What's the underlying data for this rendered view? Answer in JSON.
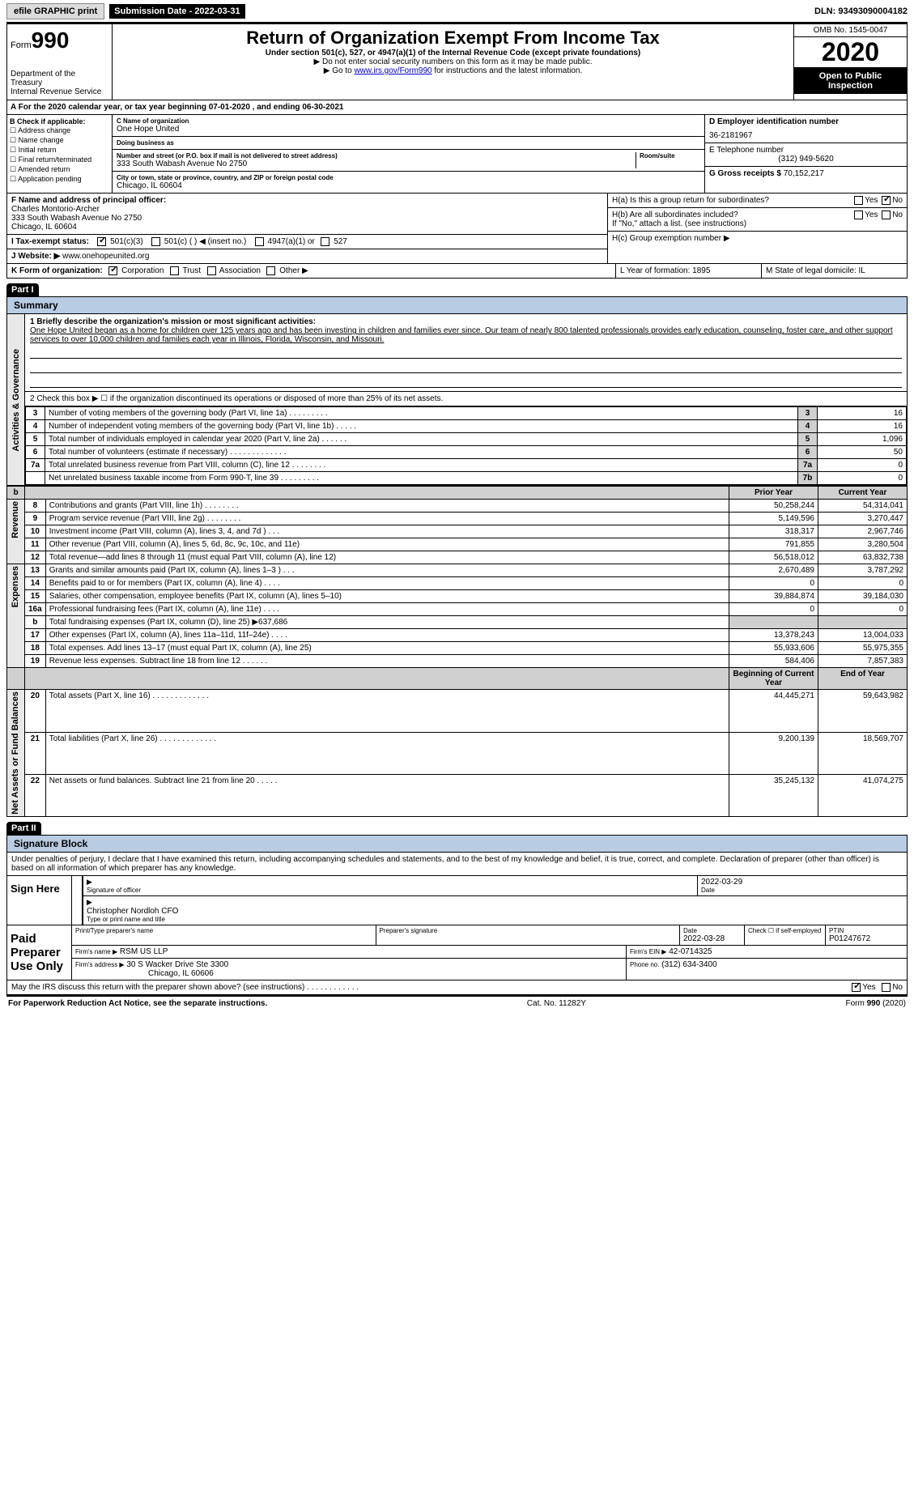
{
  "topbar": {
    "efile": "efile GRAPHIC print",
    "submission": "Submission Date - 2022-03-31",
    "dln": "DLN: 93493090004182"
  },
  "header": {
    "form": "Form",
    "num": "990",
    "dept": "Department of the Treasury\nInternal Revenue Service",
    "title": "Return of Organization Exempt From Income Tax",
    "sub": "Under section 501(c), 527, or 4947(a)(1) of the Internal Revenue Code (except private foundations)",
    "note1": "▶ Do not enter social security numbers on this form as it may be made public.",
    "note2_pre": "▶ Go to ",
    "note2_link": "www.irs.gov/Form990",
    "note2_post": " for instructions and the latest information.",
    "omb": "OMB No. 1545-0047",
    "year": "2020",
    "open": "Open to Public Inspection"
  },
  "rowA": "A For the 2020 calendar year, or tax year beginning 07-01-2020    , and ending 06-30-2021",
  "boxB": {
    "title": "B Check if applicable:",
    "items": [
      "Address change",
      "Name change",
      "Initial return",
      "Final return/terminated",
      "Amended return",
      "Application pending"
    ]
  },
  "boxC": {
    "lbl": "C Name of organization",
    "name": "One Hope United",
    "dba_lbl": "Doing business as",
    "addr_lbl": "Number and street (or P.O. box if mail is not delivered to street address)",
    "addr": "333 South Wabash Avenue No 2750",
    "room_lbl": "Room/suite",
    "city_lbl": "City or town, state or province, country, and ZIP or foreign postal code",
    "city": "Chicago, IL  60604"
  },
  "boxD": {
    "lbl": "D Employer identification number",
    "val": "36-2181967"
  },
  "boxE": {
    "lbl": "E Telephone number",
    "val": "(312) 949-5620"
  },
  "boxG": {
    "lbl": "G Gross receipts $",
    "val": "70,152,217"
  },
  "boxF": {
    "lbl": "F Name and address of principal officer:",
    "name": "Charles Montorio-Archer",
    "addr": "333 South Wabash Avenue No 2750",
    "city": "Chicago, IL  60604"
  },
  "boxH": {
    "a": "H(a)  Is this a group return for subordinates?",
    "b": "H(b)  Are all subordinates included?",
    "note": "If \"No,\" attach a list. (see instructions)",
    "c": "H(c)  Group exemption number ▶"
  },
  "yes": "Yes",
  "no": "No",
  "boxI": "I    Tax-exempt status:",
  "i_opts": [
    "501(c)(3)",
    "501(c) (  ) ◀ (insert no.)",
    "4947(a)(1) or",
    "527"
  ],
  "boxJ": {
    "lbl": "J   Website: ▶",
    "val": "www.onehopeunited.org"
  },
  "boxK": "K Form of organization:",
  "k_opts": [
    "Corporation",
    "Trust",
    "Association",
    "Other ▶"
  ],
  "boxL": "L Year of formation: 1895",
  "boxM": "M State of legal domicile: IL",
  "part1": {
    "hdr": "Part I",
    "title": "Summary"
  },
  "mission": {
    "lbl": "1  Briefly describe the organization's mission or most significant activities:",
    "txt": "One Hope United began as a home for children over 125 years ago and has been investing in children and families ever since. Our team of nearly 800 talented professionals provides early education, counseling, foster care, and other support services to over 10,000 children and families each year in Illinois, Florida, Wisconsin, and Missouri."
  },
  "line2": "2   Check this box ▶ ☐ if the organization discontinued its operations or disposed of more than 25% of its net assets.",
  "gov_rows": [
    {
      "n": "3",
      "t": "Number of voting members of the governing body (Part VI, line 1a)   .    .    .    .    .    .    .    .    .",
      "b": "3",
      "v": "16"
    },
    {
      "n": "4",
      "t": "Number of independent voting members of the governing body (Part VI, line 1b)    .    .    .    .    .",
      "b": "4",
      "v": "16"
    },
    {
      "n": "5",
      "t": "Total number of individuals employed in calendar year 2020 (Part V, line 2a)   .    .    .    .    .    .",
      "b": "5",
      "v": "1,096"
    },
    {
      "n": "6",
      "t": "Total number of volunteers (estimate if necessary)    .    .    .    .    .    .    .    .    .    .    .    .    .",
      "b": "6",
      "v": "50"
    },
    {
      "n": "7a",
      "t": "Total unrelated business revenue from Part VIII, column (C), line 12    .    .    .    .    .    .    .    .",
      "b": "7a",
      "v": "0"
    },
    {
      "n": "",
      "t": "Net unrelated business taxable income from Form 990-T, line 39    .    .    .    .    .    .    .    .    .",
      "b": "7b",
      "v": "0"
    }
  ],
  "yr_hdr": {
    "b": "b",
    "py": "Prior Year",
    "cy": "Current Year"
  },
  "rev_side": "Revenue",
  "rev_rows": [
    {
      "n": "8",
      "t": "Contributions and grants (Part VIII, line 1h)    .    .    .    .    .    .    .    .",
      "py": "50,258,244",
      "cy": "54,314,041"
    },
    {
      "n": "9",
      "t": "Program service revenue (Part VIII, line 2g)    .    .    .    .    .    .    .    .",
      "py": "5,149,596",
      "cy": "3,270,447"
    },
    {
      "n": "10",
      "t": "Investment income (Part VIII, column (A), lines 3, 4, and 7d )    .    .    .",
      "py": "318,317",
      "cy": "2,967,746"
    },
    {
      "n": "11",
      "t": "Other revenue (Part VIII, column (A), lines 5, 6d, 8c, 9c, 10c, and 11e)",
      "py": "791,855",
      "cy": "3,280,504"
    },
    {
      "n": "12",
      "t": "Total revenue—add lines 8 through 11 (must equal Part VIII, column (A), line 12)",
      "py": "56,518,012",
      "cy": "63,832,738"
    }
  ],
  "exp_side": "Expenses",
  "exp_rows": [
    {
      "n": "13",
      "t": "Grants and similar amounts paid (Part IX, column (A), lines 1–3 )    .    .    .",
      "py": "2,670,489",
      "cy": "3,787,292"
    },
    {
      "n": "14",
      "t": "Benefits paid to or for members (Part IX, column (A), line 4)    .    .    .    .",
      "py": "0",
      "cy": "0"
    },
    {
      "n": "15",
      "t": "Salaries, other compensation, employee benefits (Part IX, column (A), lines 5–10)",
      "py": "39,884,874",
      "cy": "39,184,030"
    },
    {
      "n": "16a",
      "t": "Professional fundraising fees (Part IX, column (A), line 11e)    .    .    .    .",
      "py": "0",
      "cy": "0"
    },
    {
      "n": "b",
      "t": "Total fundraising expenses (Part IX, column (D), line 25) ▶637,686",
      "py": "",
      "cy": ""
    },
    {
      "n": "17",
      "t": "Other expenses (Part IX, column (A), lines 11a–11d, 11f–24e)    .    .    .    .",
      "py": "13,378,243",
      "cy": "13,004,033"
    },
    {
      "n": "18",
      "t": "Total expenses. Add lines 13–17 (must equal Part IX, column (A), line 25)",
      "py": "55,933,606",
      "cy": "55,975,355"
    },
    {
      "n": "19",
      "t": "Revenue less expenses. Subtract line 18 from line 12    .    .    .    .    .    .",
      "py": "584,406",
      "cy": "7,857,383"
    }
  ],
  "na_side": "Net Assets or Fund Balances",
  "na_hdr": {
    "py": "Beginning of Current Year",
    "cy": "End of Year"
  },
  "na_rows": [
    {
      "n": "20",
      "t": "Total assets (Part X, line 16)    .    .    .    .    .    .    .    .    .    .    .    .    .",
      "py": "44,445,271",
      "cy": "59,643,982"
    },
    {
      "n": "21",
      "t": "Total liabilities (Part X, line 26)    .    .    .    .    .    .    .    .    .    .    .    .    .",
      "py": "9,200,139",
      "cy": "18,569,707"
    },
    {
      "n": "22",
      "t": "Net assets or fund balances. Subtract line 21 from line 20    .    .    .    .    .",
      "py": "35,245,132",
      "cy": "41,074,275"
    }
  ],
  "gov_side": "Activities & Governance",
  "part2": {
    "hdr": "Part II",
    "title": "Signature Block"
  },
  "penalty": "Under penalties of perjury, I declare that I have examined this return, including accompanying schedules and statements, and to the best of my knowledge and belief, it is true, correct, and complete. Declaration of preparer (other than officer) is based on all information of which preparer has any knowledge.",
  "sign": {
    "here": "Sign Here",
    "sig_lbl": "Signature of officer",
    "date_lbl": "Date",
    "date": "2022-03-29",
    "name": "Christopher Nordloh CFO",
    "name_lbl": "Type or print name and title"
  },
  "paid": {
    "here": "Paid Preparer Use Only",
    "pname_lbl": "Print/Type preparer's name",
    "psig_lbl": "Preparer's signature",
    "pdate_lbl": "Date",
    "pdate": "2022-03-28",
    "self_lbl": "Check ☐ if self-employed",
    "ptin_lbl": "PTIN",
    "ptin": "P01247672",
    "firm_lbl": "Firm's name    ▶",
    "firm": "RSM US LLP",
    "ein_lbl": "Firm's EIN ▶",
    "ein": "42-0714325",
    "addr_lbl": "Firm's address ▶",
    "addr": "30 S Wacker Drive Ste 3300",
    "city": "Chicago, IL  60606",
    "phone_lbl": "Phone no.",
    "phone": "(312) 634-3400"
  },
  "discuss": "May the IRS discuss this return with the preparer shown above? (see instructions)    .    .    .    .    .    .    .    .    .    .    .    .",
  "footer": {
    "left": "For Paperwork Reduction Act Notice, see the separate instructions.",
    "mid": "Cat. No. 11282Y",
    "right": "Form 990 (2020)"
  }
}
